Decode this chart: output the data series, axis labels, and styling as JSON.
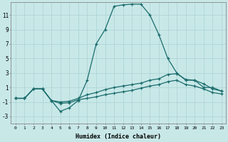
{
  "xlabel": "Humidex (Indice chaleur)",
  "background_color": "#c8e8e8",
  "grid_color": "#b0d4d4",
  "line_color": "#1a6b6b",
  "xlim": [
    -0.5,
    23.5
  ],
  "ylim": [
    -4.0,
    12.8
  ],
  "xticks": [
    0,
    1,
    2,
    3,
    4,
    5,
    6,
    7,
    8,
    9,
    10,
    11,
    12,
    13,
    14,
    15,
    16,
    17,
    18,
    19,
    20,
    21,
    22,
    23
  ],
  "yticks": [
    -3,
    -1,
    1,
    3,
    5,
    7,
    9,
    11
  ],
  "curve1_x": [
    0,
    1,
    2,
    3,
    4,
    5,
    6,
    7,
    8,
    9,
    10,
    11,
    12,
    13,
    14,
    15,
    16,
    17,
    18,
    19,
    20,
    21,
    22,
    23
  ],
  "curve1_y": [
    -0.5,
    -0.5,
    0.8,
    0.8,
    -0.8,
    -2.3,
    -1.8,
    -0.8,
    2.0,
    7.0,
    9.0,
    12.2,
    12.4,
    12.5,
    12.5,
    11.0,
    8.3,
    5.0,
    3.0,
    2.0,
    2.0,
    1.0,
    1.0,
    0.5
  ],
  "curve2_x": [
    0,
    1,
    2,
    3,
    4,
    5,
    6,
    7,
    8,
    9,
    10,
    11,
    12,
    13,
    14,
    15,
    16,
    17,
    18,
    19,
    20,
    21,
    22,
    23
  ],
  "curve2_y": [
    -0.5,
    -0.5,
    0.8,
    0.8,
    -0.8,
    -1.0,
    -0.9,
    -0.5,
    0.0,
    0.3,
    0.7,
    1.0,
    1.2,
    1.4,
    1.6,
    2.0,
    2.2,
    2.8,
    2.9,
    2.1,
    2.0,
    1.5,
    0.8,
    0.5
  ],
  "curve3_x": [
    0,
    1,
    2,
    3,
    4,
    5,
    6,
    7,
    8,
    9,
    10,
    11,
    12,
    13,
    14,
    15,
    16,
    17,
    18,
    19,
    20,
    21,
    22,
    23
  ],
  "curve3_y": [
    -0.5,
    -0.5,
    0.8,
    0.8,
    -0.8,
    -1.2,
    -1.1,
    -0.7,
    -0.5,
    -0.3,
    0.0,
    0.2,
    0.4,
    0.6,
    0.9,
    1.2,
    1.4,
    1.8,
    2.0,
    1.4,
    1.2,
    0.8,
    0.3,
    0.1
  ]
}
